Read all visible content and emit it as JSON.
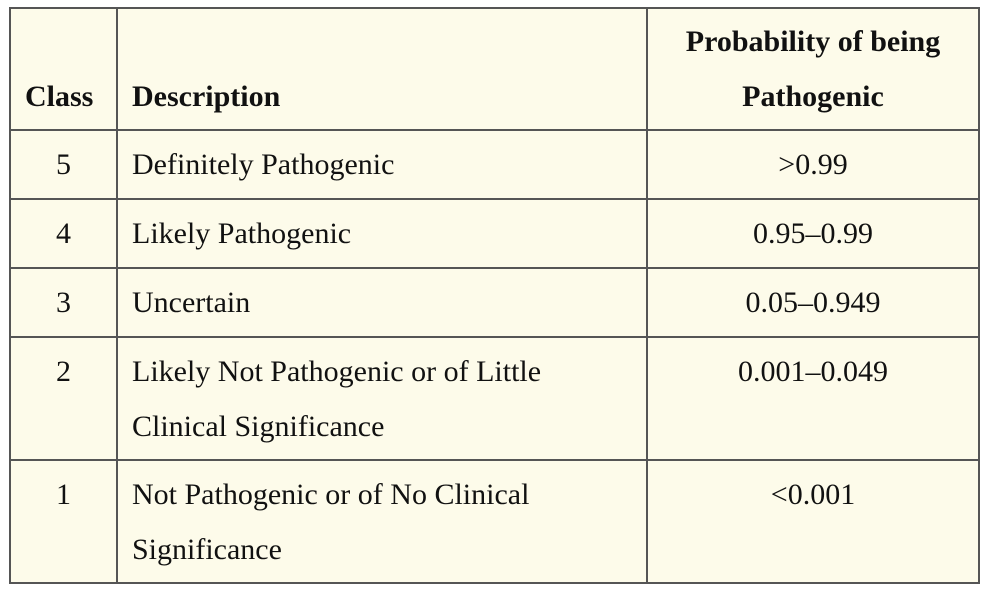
{
  "table": {
    "headers": {
      "class": "Class",
      "description": "Description",
      "probability": "Probability of being Pathogenic"
    },
    "rows": [
      {
        "class": "5",
        "description": "Definitely Pathogenic",
        "probability": ">0.99"
      },
      {
        "class": "4",
        "description": "Likely Pathogenic",
        "probability": "0.95–0.99"
      },
      {
        "class": "3",
        "description": "Uncertain",
        "probability": "0.05–0.949"
      },
      {
        "class": "2",
        "description": "Likely Not Pathogenic or of Little Clinical Significance",
        "probability": "0.001–0.049"
      },
      {
        "class": "1",
        "description": "Not Pathogenic or of No Clinical Significance",
        "probability": "<0.001"
      }
    ]
  }
}
